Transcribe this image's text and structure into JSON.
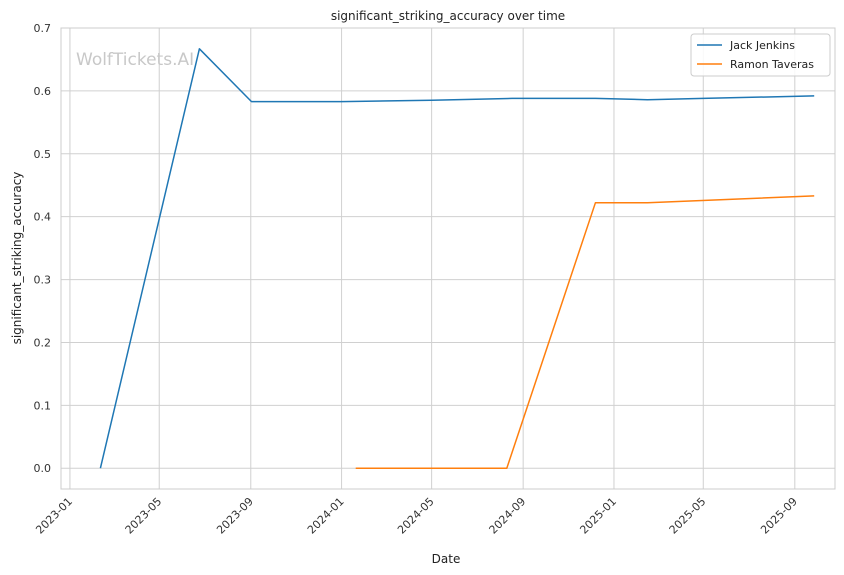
{
  "watermark": "WolfTickets.AI",
  "chart_data": {
    "type": "line",
    "title": "significant_striking_accuracy over time",
    "xlabel": "Date",
    "ylabel": "significant_striking_accuracy",
    "xlim": [
      "2022-12-20",
      "2025-10-25"
    ],
    "ylim": [
      -0.033,
      0.7
    ],
    "yticks": [
      0.0,
      0.1,
      0.2,
      0.3,
      0.4,
      0.5,
      0.6,
      0.7
    ],
    "ytick_labels": [
      "0.0",
      "0.1",
      "0.2",
      "0.3",
      "0.4",
      "0.5",
      "0.6",
      "0.7"
    ],
    "xticks": [
      "2023-01-01",
      "2023-05-01",
      "2023-09-01",
      "2024-01-01",
      "2024-05-01",
      "2024-09-01",
      "2025-01-01",
      "2025-05-01",
      "2025-09-01"
    ],
    "xtick_labels": [
      "2023-01",
      "2023-05",
      "2023-09",
      "2024-01",
      "2024-05",
      "2024-09",
      "2025-01",
      "2025-05",
      "2025-09"
    ],
    "grid": true,
    "legend_position": "top-right",
    "series": [
      {
        "name": "Jack Jenkins",
        "color": "#1f77b4",
        "points": [
          {
            "x": "2023-02-11",
            "y": 0.0
          },
          {
            "x": "2023-06-24",
            "y": 0.667
          },
          {
            "x": "2023-09-02",
            "y": 0.583
          },
          {
            "x": "2024-01-01",
            "y": 0.583
          },
          {
            "x": "2024-05-01",
            "y": 0.585
          },
          {
            "x": "2024-08-17",
            "y": 0.588
          },
          {
            "x": "2024-12-07",
            "y": 0.588
          },
          {
            "x": "2025-02-15",
            "y": 0.586
          },
          {
            "x": "2025-05-01",
            "y": 0.588
          },
          {
            "x": "2025-09-27",
            "y": 0.592
          }
        ]
      },
      {
        "name": "Ramon Taveras",
        "color": "#ff7f0e",
        "points": [
          {
            "x": "2024-01-20",
            "y": 0.0
          },
          {
            "x": "2024-08-10",
            "y": 0.0
          },
          {
            "x": "2024-12-07",
            "y": 0.422
          },
          {
            "x": "2025-02-15",
            "y": 0.422
          },
          {
            "x": "2025-09-27",
            "y": 0.433
          }
        ]
      }
    ]
  }
}
